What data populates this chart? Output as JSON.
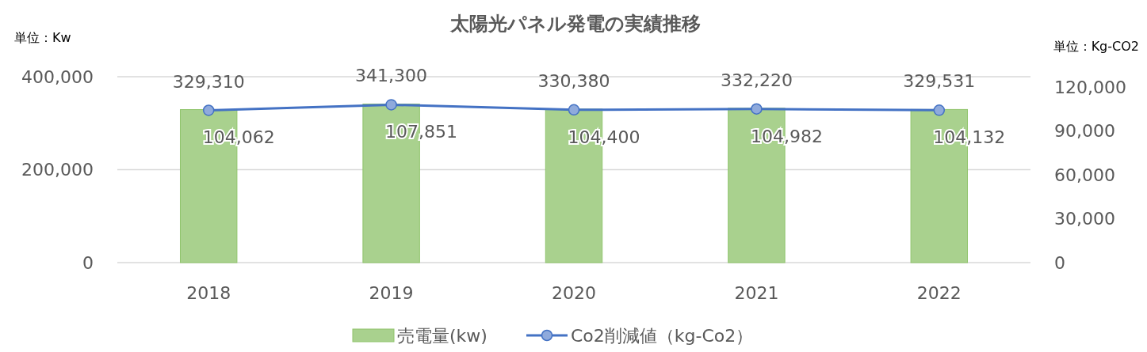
{
  "chart_data": {
    "type": "bar",
    "title": "太陽光パネル発電の実績推移",
    "ylabel": "単位：Kw",
    "y2label": "単位：Kg-CO2",
    "categories": [
      "2018",
      "2019",
      "2020",
      "2021",
      "2022"
    ],
    "series": [
      {
        "name": "売電量(kw)",
        "color": "#a9d18e",
        "values": [
          329310,
          341300,
          330380,
          332220,
          329531
        ],
        "value_labels": [
          "329,310",
          "341,300",
          "330,380",
          "332,220",
          "329,531"
        ]
      },
      {
        "name": "Co2削減値（kg-Co2）",
        "type": "line",
        "axis": "y2",
        "color": "#4472c4",
        "marker": "circle",
        "values": [
          104062,
          107851,
          104400,
          104982,
          104132
        ],
        "value_labels": [
          "104,062",
          "107,851",
          "104,400",
          "104,982",
          "104,132"
        ]
      }
    ],
    "ylim": [
      0,
      400000
    ],
    "yticks": [
      {
        "value": 0,
        "label": "0"
      },
      {
        "value": 200000,
        "label": "200,000"
      },
      {
        "value": 400000,
        "label": "400,000"
      }
    ],
    "y2lim": [
      0,
      127000
    ],
    "y2ticks": [
      {
        "value": 0,
        "label": "0"
      },
      {
        "value": 30000,
        "label": "30,000"
      },
      {
        "value": 60000,
        "label": "60,000"
      },
      {
        "value": 90000,
        "label": "90,000"
      },
      {
        "value": 120000,
        "label": "120,000"
      }
    ],
    "grid": "y",
    "legend": "bottom"
  }
}
